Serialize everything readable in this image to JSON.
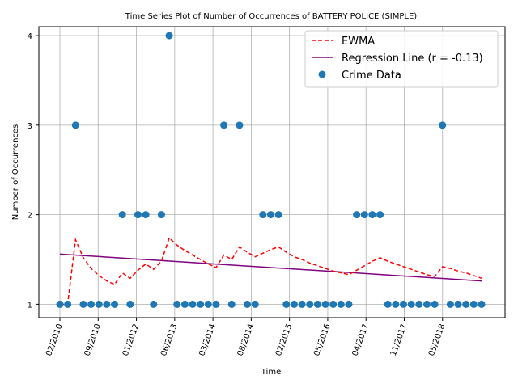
{
  "chart_data": {
    "type": "scatter",
    "title": "Time Series Plot of Number of Occurrences of BATTERY POLICE (SIMPLE)",
    "xlabel": "Time",
    "ylabel": "Number of Occurrences",
    "grid": true,
    "legend_position": "top-right",
    "x_ticks": [
      "02/2010",
      "09/2010",
      "01/2012",
      "06/2013",
      "03/2014",
      "08/2014",
      "02/2015",
      "05/2016",
      "04/2017",
      "11/2017",
      "05/2018"
    ],
    "y_ticks": [
      "1",
      "2",
      "3",
      "4"
    ],
    "ylim": [
      0.85,
      4.1
    ],
    "colors": {
      "ewma": "#ff0000",
      "regression": "#800080",
      "points": "#1f77b4",
      "grid": "#b0b0b0"
    },
    "series": [
      {
        "name": "Crime Data",
        "kind": "scatter",
        "y": [
          1,
          1,
          3,
          1,
          1,
          1,
          1,
          1,
          2,
          1,
          2,
          2,
          1,
          2,
          4,
          1,
          1,
          1,
          1,
          1,
          1,
          3,
          1,
          3,
          1,
          1,
          2,
          2,
          2,
          1,
          1,
          1,
          1,
          1,
          1,
          1,
          1,
          1,
          2,
          2,
          2,
          2,
          1,
          1,
          1,
          1,
          1,
          1,
          1,
          3,
          1,
          1,
          1,
          1,
          1
        ]
      },
      {
        "name": "EWMA",
        "kind": "line",
        "style": "dashed",
        "y": [
          1.0,
          1.0,
          1.72,
          1.52,
          1.4,
          1.32,
          1.26,
          1.22,
          1.35,
          1.29,
          1.38,
          1.45,
          1.39,
          1.48,
          1.74,
          1.66,
          1.6,
          1.55,
          1.5,
          1.45,
          1.41,
          1.55,
          1.5,
          1.64,
          1.58,
          1.53,
          1.57,
          1.61,
          1.64,
          1.58,
          1.53,
          1.5,
          1.46,
          1.43,
          1.4,
          1.37,
          1.35,
          1.33,
          1.38,
          1.43,
          1.48,
          1.52,
          1.48,
          1.45,
          1.42,
          1.39,
          1.36,
          1.33,
          1.31,
          1.42,
          1.4,
          1.37,
          1.35,
          1.32,
          1.29
        ]
      },
      {
        "name": "Regression Line (r = -0.13)",
        "kind": "line",
        "style": "solid",
        "y_start": 1.56,
        "y_end": 1.26
      }
    ]
  }
}
